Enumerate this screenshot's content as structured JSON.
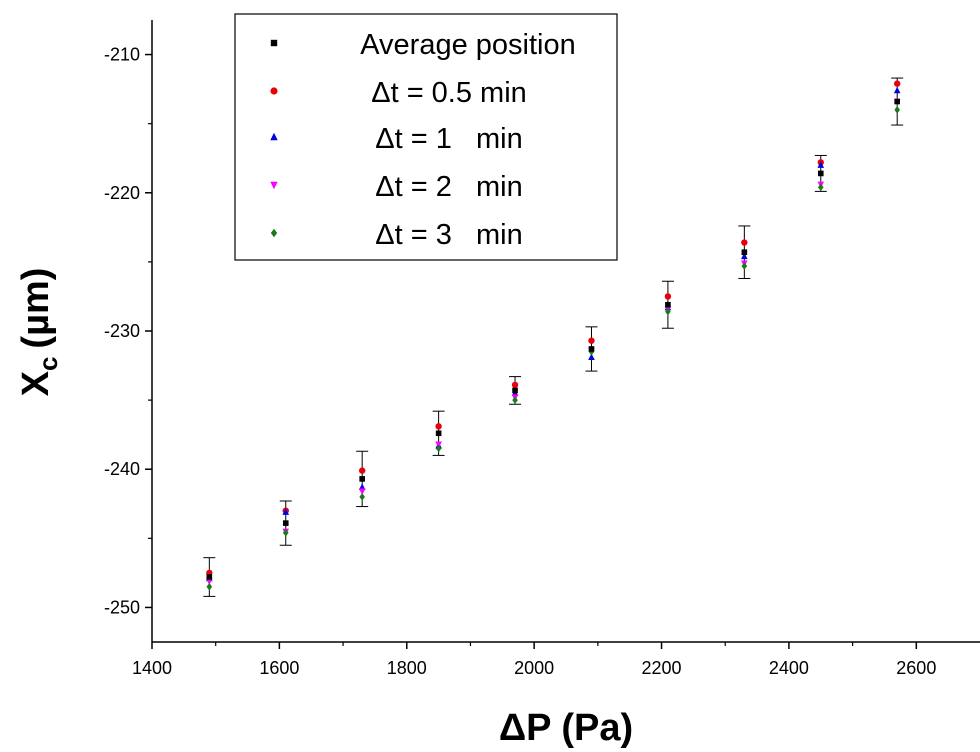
{
  "chart_data": {
    "type": "scatter",
    "xlabel": "ΔP (Pa)",
    "ylabel_main": "X",
    "ylabel_sub": "c",
    "ylabel_unit": "(µm)",
    "xlim": [
      1400,
      2700
    ],
    "ylim": [
      -252.5,
      -207.5
    ],
    "xticks": [
      1400,
      1600,
      1800,
      2000,
      2200,
      2400,
      2600
    ],
    "yticks": [
      -250,
      -240,
      -230,
      -220,
      -210
    ],
    "grid": false,
    "legend_position": "top-left",
    "x": [
      1490,
      1610,
      1730,
      1850,
      1970,
      2090,
      2210,
      2330,
      2450,
      2570
    ],
    "series": [
      {
        "name": "Average position",
        "marker": "square",
        "color": "#000000",
        "values": [
          -247.8,
          -243.9,
          -240.7,
          -237.4,
          -234.3,
          -231.3,
          -228.1,
          -224.3,
          -218.6,
          -213.4
        ],
        "error": [
          1.4,
          1.6,
          2.0,
          1.6,
          1.0,
          1.6,
          1.7,
          1.9,
          1.3,
          1.7
        ]
      },
      {
        "name": "Δt = 0.5 min",
        "marker": "circle",
        "color": "#e8000b",
        "values": [
          -247.5,
          -243.0,
          -240.1,
          -236.9,
          -233.9,
          -230.7,
          -227.5,
          -223.6,
          -217.8,
          -212.1
        ]
      },
      {
        "name": "Δt = 1   min",
        "marker": "triangle-up",
        "color": "#0000e6",
        "values": [
          -247.9,
          -243.1,
          -241.3,
          -238.3,
          -234.5,
          -231.9,
          -228.3,
          -224.6,
          -218.0,
          -212.6
        ]
      },
      {
        "name": "Δt = 2   min",
        "marker": "triangle-down",
        "color": "#ff00ff",
        "values": [
          -248.1,
          -244.5,
          -241.6,
          -238.2,
          -234.8,
          -231.4,
          -228.4,
          -225.1,
          -219.4,
          -213.4
        ]
      },
      {
        "name": "Δt = 3   min",
        "marker": "diamond",
        "color": "#1c7a1c",
        "values": [
          -248.5,
          -244.6,
          -242.0,
          -238.5,
          -235.0,
          -231.5,
          -228.6,
          -225.3,
          -219.6,
          -214.0
        ]
      }
    ]
  }
}
